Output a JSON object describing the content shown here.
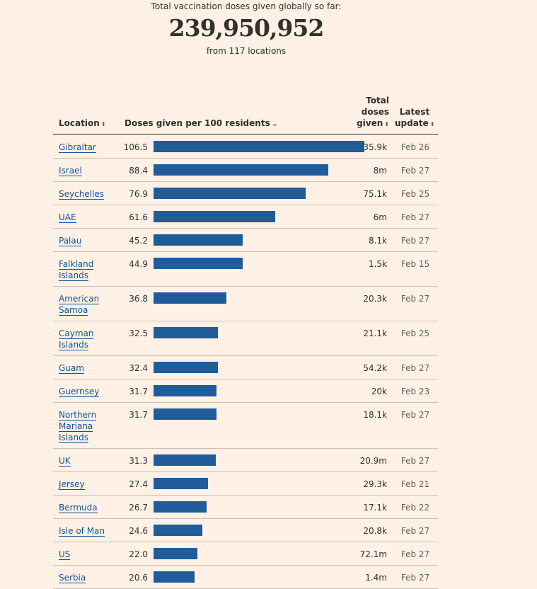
{
  "summary": {
    "label": "Total vaccination doses given globally so far:",
    "total": "239,950,952",
    "sub": "from 117 locations"
  },
  "headers": {
    "location": "Location",
    "doses": "Doses given per 100 residents",
    "total_line1": "Total",
    "total_line2": "doses",
    "total_line3": "given",
    "latest_line1": "Latest",
    "latest_line2": "update",
    "sort_icon": "⬍",
    "sort_active_icon": "⌄"
  },
  "chart_data": {
    "type": "bar",
    "orientation": "horizontal",
    "title": "Doses given per 100 residents",
    "xlim": [
      0,
      106.5
    ],
    "rows": [
      {
        "location": "Gibraltar",
        "doses_per_100": 106.5,
        "doses_label": "106.5",
        "total": "35.9k",
        "updated": "Feb 26"
      },
      {
        "location": "Israel",
        "doses_per_100": 88.4,
        "doses_label": "88.4",
        "total": "8m",
        "updated": "Feb 27"
      },
      {
        "location": "Seychelles",
        "doses_per_100": 76.9,
        "doses_label": "76.9",
        "total": "75.1k",
        "updated": "Feb 25"
      },
      {
        "location": "UAE",
        "doses_per_100": 61.6,
        "doses_label": "61.6",
        "total": "6m",
        "updated": "Feb 27"
      },
      {
        "location": "Palau",
        "doses_per_100": 45.2,
        "doses_label": "45.2",
        "total": "8.1k",
        "updated": "Feb 27"
      },
      {
        "location": "Falkland Islands",
        "doses_per_100": 44.9,
        "doses_label": "44.9",
        "total": "1.5k",
        "updated": "Feb 15"
      },
      {
        "location": "American Samoa",
        "doses_per_100": 36.8,
        "doses_label": "36.8",
        "total": "20.3k",
        "updated": "Feb 27"
      },
      {
        "location": "Cayman Islands",
        "doses_per_100": 32.5,
        "doses_label": "32.5",
        "total": "21.1k",
        "updated": "Feb 25"
      },
      {
        "location": "Guam",
        "doses_per_100": 32.4,
        "doses_label": "32.4",
        "total": "54.2k",
        "updated": "Feb 27"
      },
      {
        "location": "Guernsey",
        "doses_per_100": 31.7,
        "doses_label": "31.7",
        "total": "20k",
        "updated": "Feb 23"
      },
      {
        "location": "Northern Mariana Islands",
        "doses_per_100": 31.7,
        "doses_label": "31.7",
        "total": "18.1k",
        "updated": "Feb 27"
      },
      {
        "location": "UK",
        "doses_per_100": 31.3,
        "doses_label": "31.3",
        "total": "20.9m",
        "updated": "Feb 27"
      },
      {
        "location": "Jersey",
        "doses_per_100": 27.4,
        "doses_label": "27.4",
        "total": "29.3k",
        "updated": "Feb 21"
      },
      {
        "location": "Bermuda",
        "doses_per_100": 26.7,
        "doses_label": "26.7",
        "total": "17.1k",
        "updated": "Feb 22"
      },
      {
        "location": "Isle of Man",
        "doses_per_100": 24.6,
        "doses_label": "24.6",
        "total": "20.8k",
        "updated": "Feb 27"
      },
      {
        "location": "US",
        "doses_per_100": 22.0,
        "doses_label": "22.0",
        "total": "72.1m",
        "updated": "Feb 27"
      },
      {
        "location": "Serbia",
        "doses_per_100": 20.6,
        "doses_label": "20.6",
        "total": "1.4m",
        "updated": "Feb 27"
      }
    ]
  },
  "colors": {
    "bar": "#1f5c99",
    "link": "#0f5499",
    "background": "#fff1e5"
  }
}
